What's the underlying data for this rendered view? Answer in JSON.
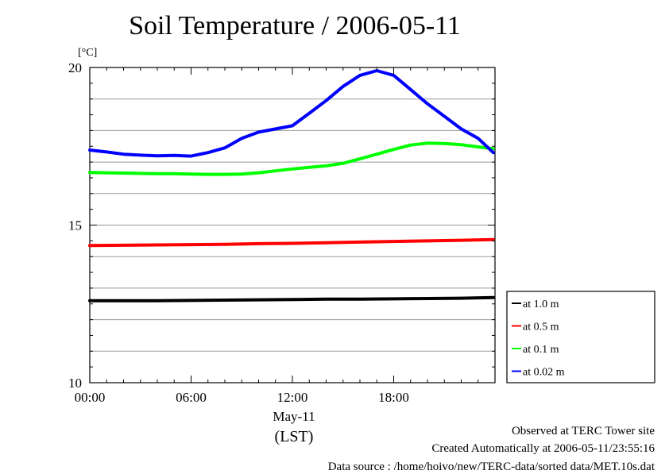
{
  "chart_data": {
    "type": "line",
    "title": "Soil Temperature / 2006-05-11",
    "y_unit": "[°C]",
    "ylim": [
      10,
      20
    ],
    "y_ticks": [
      10,
      15,
      20
    ],
    "y_minor_ticks": [
      11,
      12,
      13,
      14,
      16,
      17,
      18,
      19
    ],
    "xlim": [
      0,
      24
    ],
    "x_ticks": [
      0,
      6,
      12,
      18
    ],
    "x_tick_labels": [
      "00:00",
      "06:00",
      "12:00",
      "18:00"
    ],
    "x_date_label": "May-11",
    "x_timezone_label": "(LST)",
    "grid": true,
    "legend_position": "right",
    "series": [
      {
        "name": "at 1.0 m",
        "color": "#000000",
        "x": [
          0,
          2,
          4,
          6,
          8,
          10,
          12,
          14,
          16,
          18,
          20,
          22,
          23.9
        ],
        "y": [
          12.6,
          12.6,
          12.6,
          12.61,
          12.62,
          12.63,
          12.64,
          12.65,
          12.65,
          12.66,
          12.67,
          12.68,
          12.7
        ]
      },
      {
        "name": "at 0.5 m",
        "color": "#ff0000",
        "x": [
          0,
          2,
          4,
          6,
          8,
          10,
          12,
          14,
          16,
          18,
          20,
          22,
          23.9
        ],
        "y": [
          14.35,
          14.36,
          14.37,
          14.38,
          14.39,
          14.41,
          14.42,
          14.44,
          14.46,
          14.48,
          14.5,
          14.52,
          14.54
        ]
      },
      {
        "name": "at 0.1 m",
        "color": "#00ff00",
        "x": [
          0,
          1,
          2,
          3,
          4,
          5,
          6,
          7,
          8,
          9,
          10,
          11,
          12,
          13,
          14,
          15,
          16,
          17,
          18,
          19,
          20,
          21,
          22,
          23,
          23.9
        ],
        "y": [
          16.67,
          16.66,
          16.65,
          16.64,
          16.63,
          16.63,
          16.62,
          16.61,
          16.61,
          16.62,
          16.66,
          16.72,
          16.78,
          16.83,
          16.88,
          16.96,
          17.1,
          17.25,
          17.4,
          17.54,
          17.6,
          17.59,
          17.55,
          17.48,
          17.42
        ]
      },
      {
        "name": "at 0.02 m",
        "color": "#0000ff",
        "x": [
          0,
          1,
          2,
          3,
          4,
          5,
          6,
          7,
          8,
          9,
          10,
          11,
          12,
          13,
          14,
          15,
          16,
          17,
          18,
          19,
          20,
          21,
          22,
          23,
          23.9
        ],
        "y": [
          17.38,
          17.32,
          17.25,
          17.22,
          17.2,
          17.21,
          17.19,
          17.3,
          17.45,
          17.75,
          17.95,
          18.05,
          18.15,
          18.55,
          18.95,
          19.4,
          19.75,
          19.9,
          19.75,
          19.3,
          18.85,
          18.45,
          18.05,
          17.75,
          17.3
        ]
      }
    ]
  },
  "footer": {
    "site": "Observed at TERC Tower site",
    "created": "Created Automatically at 2006-05-11/23:55:16",
    "source": "Data source : /home/hoivo/new/TERC-data/sorted  data/MET.10s.dat"
  }
}
